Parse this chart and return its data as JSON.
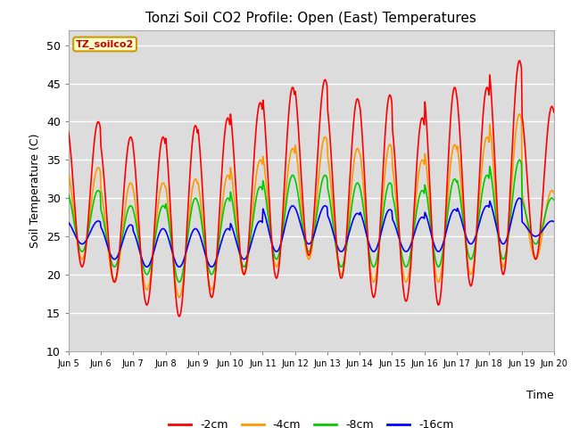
{
  "title": "Tonzi Soil CO2 Profile: Open (East) Temperatures",
  "xlabel": "Time",
  "ylabel": "Soil Temperature (C)",
  "ylim": [
    10,
    52
  ],
  "yticks": [
    10,
    15,
    20,
    25,
    30,
    35,
    40,
    45,
    50
  ],
  "plot_bg_color": "#dcdcdc",
  "fig_bg_color": "#ffffff",
  "grid_color": "#ffffff",
  "legend_label": "TZ_soilco2",
  "legend_bg": "#ffffcc",
  "legend_border": "#cc9900",
  "series_labels": [
    "-2cm",
    "-4cm",
    "-8cm",
    "-16cm"
  ],
  "series_colors": [
    "#ff0000",
    "#ff9900",
    "#00cc00",
    "#0000ff"
  ],
  "xtick_labels": [
    "Jun 5",
    "Jun 6",
    "Jun 7",
    "Jun 8",
    "Jun 9",
    "Jun 10",
    "Jun 11",
    "Jun 12",
    "Jun 13",
    "Jun 14",
    "Jun 15",
    "Jun 16",
    "Jun 17",
    "Jun 18",
    "Jun 19",
    "Jun 20"
  ],
  "n_days": 15,
  "n_points_per_day": 48,
  "day_peaks_2cm": [
    40.0,
    38.0,
    38.0,
    39.5,
    40.5,
    42.5,
    44.5,
    45.5,
    43.0,
    43.5,
    40.5,
    44.5,
    44.5,
    48.0,
    42.0
  ],
  "day_troughs_2cm": [
    21.0,
    19.0,
    16.0,
    14.5,
    17.0,
    20.0,
    19.5,
    22.5,
    19.5,
    17.0,
    16.5,
    16.0,
    18.5,
    20.0,
    22.0
  ],
  "day_peaks_4cm": [
    34.0,
    32.0,
    32.0,
    32.5,
    33.0,
    35.0,
    36.5,
    38.0,
    36.5,
    37.0,
    35.0,
    37.0,
    38.0,
    41.0,
    31.0
  ],
  "day_troughs_4cm": [
    22.0,
    19.0,
    18.0,
    17.0,
    18.0,
    20.0,
    21.0,
    22.0,
    20.0,
    19.0,
    19.0,
    19.0,
    20.0,
    21.0,
    22.0
  ],
  "day_peaks_8cm": [
    31.0,
    29.0,
    29.0,
    30.0,
    30.0,
    31.5,
    33.0,
    33.0,
    32.0,
    32.0,
    31.0,
    32.5,
    33.0,
    35.0,
    30.0
  ],
  "day_troughs_8cm": [
    23.0,
    21.0,
    20.0,
    19.0,
    20.0,
    21.0,
    22.0,
    23.0,
    21.0,
    21.0,
    21.0,
    21.0,
    22.0,
    22.0,
    24.0
  ],
  "day_peaks_16cm": [
    27.0,
    26.5,
    26.0,
    26.0,
    26.0,
    27.0,
    29.0,
    29.0,
    28.0,
    28.5,
    27.5,
    28.5,
    29.0,
    30.0,
    27.0
  ],
  "day_troughs_16cm": [
    24.0,
    22.0,
    21.0,
    21.0,
    21.0,
    22.0,
    23.0,
    24.0,
    23.0,
    23.0,
    23.0,
    23.0,
    24.0,
    24.0,
    25.0
  ]
}
